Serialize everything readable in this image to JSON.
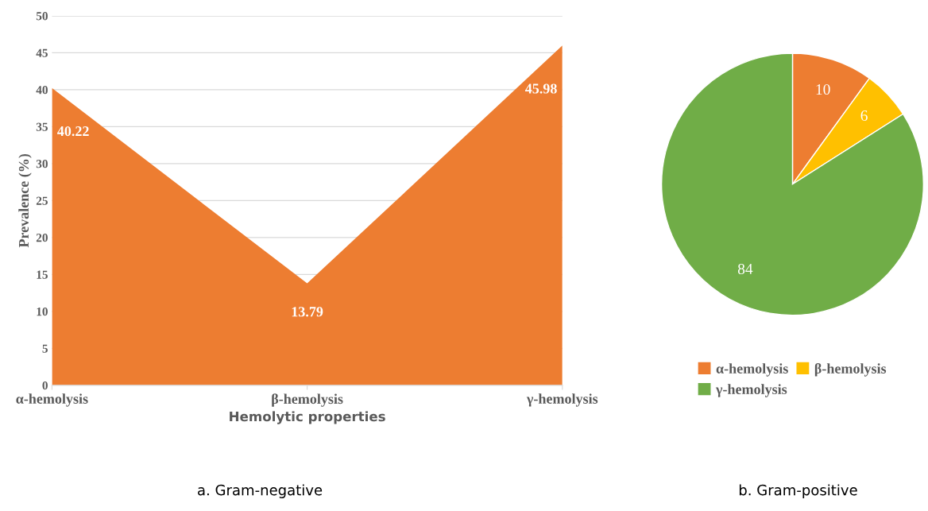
{
  "chart_data": [
    {
      "type": "area",
      "categories": [
        "α-hemolysis",
        "β-hemolysis",
        "γ-hemolysis"
      ],
      "series": [
        {
          "color": "#ed7d31",
          "values": [
            40.22,
            13.79,
            45.98
          ]
        }
      ],
      "ylabel": "Prevalence (%)",
      "xlabel": "Hemolytic properties",
      "ylim": [
        0,
        50
      ],
      "yticks": [
        0,
        5,
        10,
        15,
        20,
        25,
        30,
        35,
        40,
        45,
        50
      ],
      "grid": "y",
      "data_labels": true,
      "annotations": [
        "a. Gram-negative"
      ]
    },
    {
      "type": "pie",
      "categories": [
        "α-hemolysis",
        "β-hemolysis",
        "γ-hemolysis"
      ],
      "values": [
        10,
        6,
        84
      ],
      "colors": [
        "#ed7d31",
        "#ffc000",
        "#70ad47"
      ],
      "data_labels": true,
      "legend": "bottom",
      "annotations": [
        "b. Gram-positive"
      ]
    }
  ]
}
